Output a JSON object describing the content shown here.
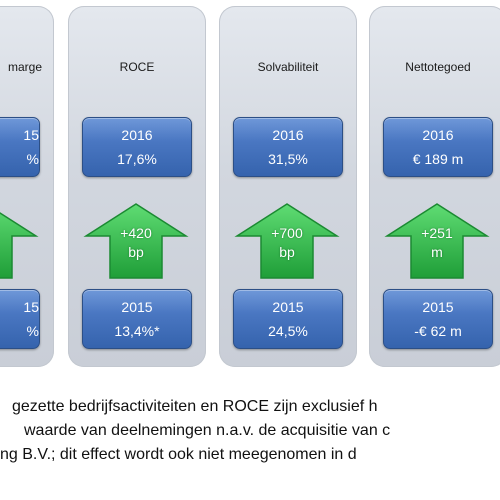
{
  "panels": [
    {
      "title": "marge",
      "top_year": "15",
      "top_value": "%",
      "arrow_line1": "",
      "arrow_line2": "",
      "bottom_year": "15",
      "bottom_value": "%"
    },
    {
      "title": "ROCE",
      "top_year": "2016",
      "top_value": "17,6%",
      "arrow_line1": "+420",
      "arrow_line2": "bp",
      "bottom_year": "2015",
      "bottom_value": "13,4%*"
    },
    {
      "title": "Solvabiliteit",
      "top_year": "2016",
      "top_value": "31,5%",
      "arrow_line1": "+700",
      "arrow_line2": "bp",
      "bottom_year": "2015",
      "bottom_value": "24,5%"
    },
    {
      "title": "Nettotegoed",
      "top_year": "2016",
      "top_value": "€ 189 m",
      "arrow_line1": "+251",
      "arrow_line2": "m",
      "bottom_year": "2015",
      "bottom_value": "-€ 62 m"
    }
  ],
  "footnote": {
    "line1": "gezette bedrijfsactiviteiten en ROCE zijn exclusief h",
    "line2": "waarde van deelnemingen n.a.v. de acquisitie van c",
    "line3": "ng B.V.; dit effect wordt ook niet meegenomen in d"
  },
  "colors": {
    "box_blue": "#3f6cb6",
    "arrow_green": "#2fb84a",
    "panel_gray": "#d2d7df"
  }
}
